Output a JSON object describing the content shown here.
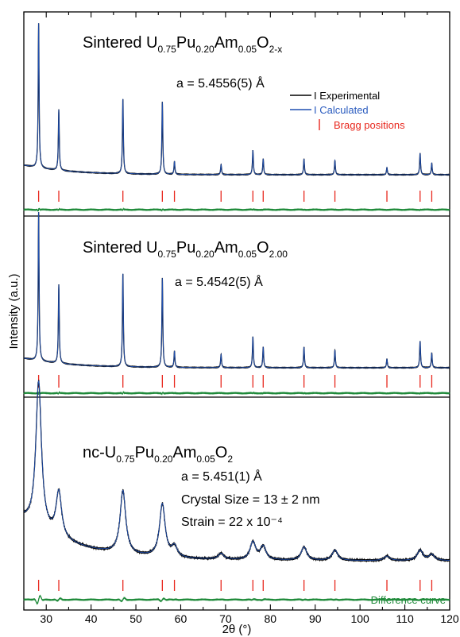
{
  "chart_data": {
    "type": "line",
    "xlabel": "2θ (°)",
    "ylabel": "Intensity (a.u.)",
    "xlim": [
      25,
      120
    ],
    "x_ticks": [
      30,
      40,
      50,
      60,
      70,
      80,
      90,
      100,
      110,
      120
    ],
    "bragg_positions": [
      28.3,
      32.8,
      47.1,
      55.9,
      58.6,
      69.0,
      76.1,
      78.4,
      87.5,
      94.4,
      106.0,
      113.4,
      116.0
    ],
    "legend": {
      "experimental": "I Experimental",
      "calculated": "I Calculated",
      "bragg": "Bragg positions",
      "difference": "Difference curve"
    },
    "colors": {
      "experimental": "#000000",
      "calculated": "#1f4fb0",
      "bragg": "#e8281e",
      "difference": "#1f8a3a",
      "calculated_text": "#2a5bbf"
    },
    "panels": [
      {
        "title": {
          "prefix": "Sintered U",
          "s1": "0.75",
          "t1": "Pu",
          "s2": "0.20",
          "t2": "Am",
          "s3": "0.05",
          "t3": "O",
          "s4": "2-x"
        },
        "annotations": [
          "a = 5.4556(5) Å"
        ],
        "peak_width": 0.12,
        "peaks": [
          {
            "x": 28.3,
            "h": 1.0
          },
          {
            "x": 32.8,
            "h": 0.42
          },
          {
            "x": 47.1,
            "h": 0.52
          },
          {
            "x": 55.9,
            "h": 0.5
          },
          {
            "x": 58.6,
            "h": 0.09
          },
          {
            "x": 69.0,
            "h": 0.07
          },
          {
            "x": 76.1,
            "h": 0.17
          },
          {
            "x": 78.4,
            "h": 0.11
          },
          {
            "x": 87.5,
            "h": 0.11
          },
          {
            "x": 94.4,
            "h": 0.1
          },
          {
            "x": 106.0,
            "h": 0.05
          },
          {
            "x": 113.4,
            "h": 0.15
          },
          {
            "x": 116.0,
            "h": 0.08
          }
        ]
      },
      {
        "title": {
          "prefix": "Sintered U",
          "s1": "0.75",
          "t1": "Pu",
          "s2": "0.20",
          "t2": "Am",
          "s3": "0.05",
          "t3": "O",
          "s4": "2.00"
        },
        "annotations": [
          "a = 5.4542(5) Å"
        ],
        "peak_width": 0.12,
        "peaks": [
          {
            "x": 28.3,
            "h": 1.0
          },
          {
            "x": 32.8,
            "h": 0.53
          },
          {
            "x": 47.1,
            "h": 0.63
          },
          {
            "x": 55.9,
            "h": 0.6
          },
          {
            "x": 58.6,
            "h": 0.11
          },
          {
            "x": 69.0,
            "h": 0.09
          },
          {
            "x": 76.1,
            "h": 0.21
          },
          {
            "x": 78.4,
            "h": 0.14
          },
          {
            "x": 87.5,
            "h": 0.14
          },
          {
            "x": 94.4,
            "h": 0.12
          },
          {
            "x": 106.0,
            "h": 0.06
          },
          {
            "x": 113.4,
            "h": 0.18
          },
          {
            "x": 116.0,
            "h": 0.1
          }
        ]
      },
      {
        "title": {
          "prefix": "nc-U",
          "s1": "0.75",
          "t1": "Pu",
          "s2": "0.20",
          "t2": "Am",
          "s3": "0.05",
          "t3": "O",
          "s4": "2"
        },
        "annotations": [
          "a = 5.451(1) Å",
          "Crystal Size = 13 ± 2 nm",
          "Strain = 22 x 10⁻⁴"
        ],
        "peak_width": 0.75,
        "peaks": [
          {
            "x": 28.3,
            "h": 1.0
          },
          {
            "x": 32.8,
            "h": 0.31
          },
          {
            "x": 47.1,
            "h": 0.43
          },
          {
            "x": 55.9,
            "h": 0.36
          },
          {
            "x": 58.6,
            "h": 0.07
          },
          {
            "x": 69.0,
            "h": 0.04
          },
          {
            "x": 76.1,
            "h": 0.12
          },
          {
            "x": 78.4,
            "h": 0.09
          },
          {
            "x": 87.5,
            "h": 0.09
          },
          {
            "x": 94.4,
            "h": 0.07
          },
          {
            "x": 106.0,
            "h": 0.03
          },
          {
            "x": 113.4,
            "h": 0.07
          },
          {
            "x": 116.0,
            "h": 0.04
          }
        ]
      }
    ]
  }
}
